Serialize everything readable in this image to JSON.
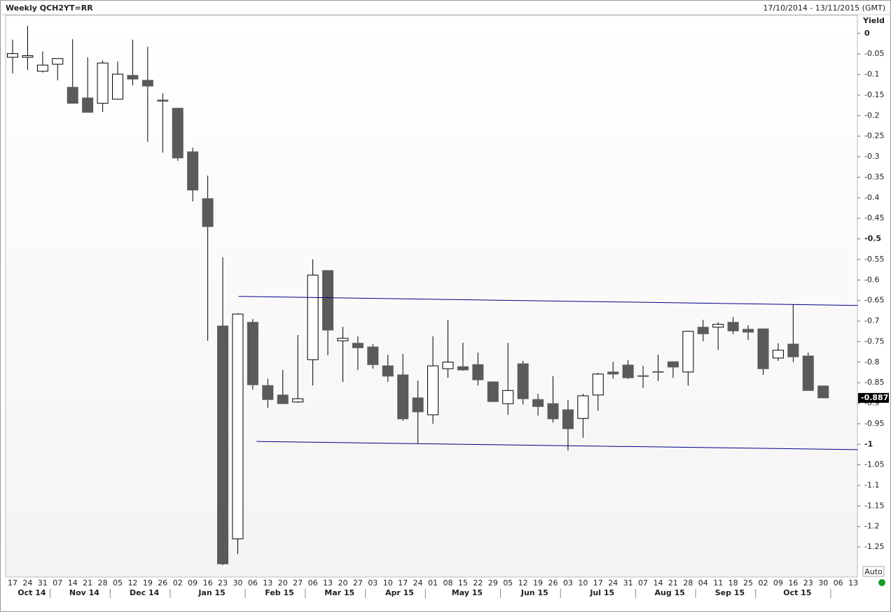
{
  "chart_data": {
    "type": "candlestick",
    "title": "Weekly QCH2YT=RR",
    "date_range": "17/10/2014 - 13/11/2015 (GMT)",
    "y_axis_label": "Yield",
    "scale_mode": "Auto",
    "categories": [
      "17",
      "24",
      "31",
      "07",
      "14",
      "21",
      "28",
      "05",
      "12",
      "19",
      "26",
      "02",
      "09",
      "16",
      "23",
      "30",
      "06",
      "13",
      "20",
      "27",
      "06",
      "13",
      "20",
      "27",
      "03",
      "10",
      "17",
      "24",
      "01",
      "08",
      "15",
      "22",
      "29",
      "05",
      "12",
      "19",
      "26",
      "03",
      "10",
      "17",
      "24",
      "31",
      "07",
      "14",
      "21",
      "28",
      "04",
      "11",
      "18",
      "25",
      "02",
      "09",
      "16",
      "23",
      "30",
      "06",
      "13"
    ],
    "months": [
      "Oct 14",
      "Nov 14",
      "Dec 14",
      "Jan 15",
      "Feb 15",
      "Mar 15",
      "Apr 15",
      "May 15",
      "Jun 15",
      "Jul 15",
      "Aug 15",
      "Sep 15",
      "Oct 15"
    ],
    "open": [
      -0.058,
      -0.058,
      -0.092,
      -0.075,
      -0.131,
      -0.157,
      -0.17,
      -0.16,
      -0.102,
      -0.114,
      -0.162,
      -0.182,
      -0.288,
      -0.402,
      -0.712,
      -1.23,
      -0.703,
      -0.857,
      -0.88,
      -0.897,
      -0.794,
      -0.577,
      -0.748,
      -0.754,
      -0.763,
      -0.809,
      -0.831,
      -0.887,
      -0.928,
      -0.816,
      -0.811,
      -0.806,
      -0.848,
      -0.901,
      -0.804,
      -0.891,
      -0.901,
      -0.916,
      -0.937,
      -0.88,
      -0.824,
      -0.807,
      -0.833,
      -0.823,
      -0.799,
      -0.824,
      -0.715,
      -0.715,
      -0.703,
      -0.72,
      -0.719,
      -0.79,
      -0.756,
      -0.785,
      -0.858,
      null,
      null
    ],
    "high": [
      -0.015,
      0.019,
      -0.044,
      -0.061,
      -0.014,
      -0.058,
      -0.066,
      -0.068,
      -0.015,
      -0.032,
      -0.146,
      -0.182,
      -0.278,
      -0.346,
      -0.545,
      -0.681,
      -0.695,
      -0.84,
      -0.819,
      -0.734,
      -0.55,
      -0.577,
      -0.714,
      -0.737,
      -0.756,
      -0.782,
      -0.78,
      -0.845,
      -0.737,
      -0.697,
      -0.753,
      -0.777,
      -0.848,
      -0.753,
      -0.797,
      -0.877,
      -0.834,
      -0.892,
      -0.877,
      -0.826,
      -0.799,
      -0.795,
      -0.809,
      -0.782,
      -0.799,
      -0.724,
      -0.697,
      -0.703,
      -0.69,
      -0.71,
      -0.719,
      -0.754,
      -0.659,
      -0.777,
      -0.858,
      null,
      null
    ],
    "low": [
      -0.097,
      -0.089,
      -0.095,
      -0.114,
      -0.17,
      -0.192,
      -0.191,
      -0.16,
      -0.126,
      -0.264,
      -0.29,
      -0.31,
      -0.409,
      -0.748,
      -1.294,
      -1.267,
      -0.867,
      -0.911,
      -0.901,
      -0.899,
      -0.857,
      -0.783,
      -0.848,
      -0.819,
      -0.816,
      -0.848,
      -0.943,
      -0.998,
      -0.95,
      -0.838,
      -0.821,
      -0.857,
      -0.896,
      -0.928,
      -0.903,
      -0.93,
      -0.947,
      -1.015,
      -0.984,
      -0.918,
      -0.84,
      -0.841,
      -0.863,
      -0.846,
      -0.838,
      -0.857,
      -0.749,
      -0.77,
      -0.732,
      -0.746,
      -0.831,
      -0.797,
      -0.8,
      -0.869,
      -0.887,
      null,
      null
    ],
    "close": [
      -0.049,
      -0.054,
      -0.077,
      -0.061,
      -0.17,
      -0.192,
      -0.072,
      -0.099,
      -0.111,
      -0.128,
      -0.165,
      -0.303,
      -0.381,
      -0.47,
      -1.291,
      -0.683,
      -0.855,
      -0.891,
      -0.901,
      -0.889,
      -0.588,
      -0.722,
      -0.742,
      -0.765,
      -0.806,
      -0.834,
      -0.938,
      -0.921,
      -0.809,
      -0.8,
      -0.819,
      -0.843,
      -0.896,
      -0.869,
      -0.889,
      -0.908,
      -0.938,
      -0.962,
      -0.882,
      -0.829,
      -0.829,
      -0.838,
      -0.834,
      -0.824,
      -0.812,
      -0.725,
      -0.731,
      -0.708,
      -0.724,
      -0.727,
      -0.816,
      -0.771,
      -0.787,
      -0.869,
      -0.887,
      null,
      null
    ],
    "up_color": "#ffffff",
    "down_color": "#5a5a5a",
    "trendlines": [
      {
        "color": "#00008b",
        "points": [
          [
            15.05,
            -0.64
          ],
          [
            56.3,
            -0.662
          ]
        ]
      },
      {
        "color": "#00008b",
        "points": [
          [
            16.25,
            -0.993
          ],
          [
            56.3,
            -1.013
          ]
        ]
      }
    ],
    "ylim": [
      -1.323,
      0.044
    ],
    "yticks": [
      0,
      -0.05,
      -0.1,
      -0.15,
      -0.2,
      -0.25,
      -0.3,
      -0.35,
      -0.4,
      -0.45,
      -0.5,
      -0.55,
      -0.6,
      -0.65,
      -0.7,
      -0.75,
      -0.8,
      -0.85,
      -0.9,
      -0.95,
      -1,
      -1.05,
      -1.1,
      -1.15,
      -1.2,
      -1.25
    ],
    "bold_yticks": [
      0,
      -0.5,
      -1
    ],
    "grid": false
  }
}
